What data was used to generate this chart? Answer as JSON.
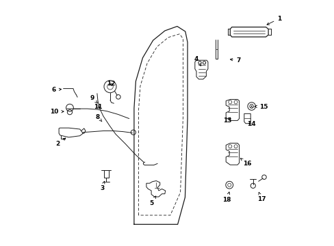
{
  "background_color": "#ffffff",
  "line_color": "#1a1a1a",
  "figsize": [
    4.89,
    3.6
  ],
  "dpi": 100,
  "door_outer": {
    "x": [
      0.365,
      0.365,
      0.375,
      0.405,
      0.445,
      0.495,
      0.545,
      0.575,
      0.585,
      0.585,
      0.575,
      0.545,
      0.495,
      0.435,
      0.365
    ],
    "y": [
      0.09,
      0.56,
      0.67,
      0.765,
      0.835,
      0.875,
      0.89,
      0.87,
      0.83,
      0.52,
      0.2,
      0.09,
      0.09,
      0.09,
      0.09
    ]
  },
  "door_inner": {
    "x": [
      0.385,
      0.385,
      0.395,
      0.425,
      0.465,
      0.51,
      0.555,
      0.57,
      0.57,
      0.558,
      0.52,
      0.46,
      0.405,
      0.385
    ],
    "y": [
      0.13,
      0.545,
      0.645,
      0.735,
      0.805,
      0.845,
      0.86,
      0.84,
      0.535,
      0.225,
      0.13,
      0.13,
      0.13,
      0.13
    ]
  },
  "label_data": [
    [
      1,
      0.955,
      0.925,
      0.895,
      0.895
    ],
    [
      2,
      0.055,
      0.415,
      0.095,
      0.445
    ],
    [
      3,
      0.235,
      0.235,
      0.245,
      0.265
    ],
    [
      4,
      0.618,
      0.76,
      0.638,
      0.73
    ],
    [
      5,
      0.435,
      0.175,
      0.455,
      0.205
    ],
    [
      6,
      0.04,
      0.635,
      0.08,
      0.638
    ],
    [
      7,
      0.79,
      0.755,
      0.745,
      0.76
    ],
    [
      8,
      0.218,
      0.525,
      0.235,
      0.505
    ],
    [
      9,
      0.195,
      0.6,
      0.218,
      0.58
    ],
    [
      10,
      0.042,
      0.545,
      0.082,
      0.547
    ],
    [
      11,
      0.218,
      0.565,
      0.228,
      0.562
    ],
    [
      12,
      0.272,
      0.66,
      0.278,
      0.642
    ],
    [
      13,
      0.745,
      0.51,
      0.762,
      0.53
    ],
    [
      14,
      0.84,
      0.495,
      0.828,
      0.5
    ],
    [
      15,
      0.89,
      0.565,
      0.852,
      0.568
    ],
    [
      16,
      0.825,
      0.335,
      0.795,
      0.358
    ],
    [
      17,
      0.882,
      0.19,
      0.868,
      0.228
    ],
    [
      18,
      0.742,
      0.188,
      0.752,
      0.222
    ]
  ]
}
